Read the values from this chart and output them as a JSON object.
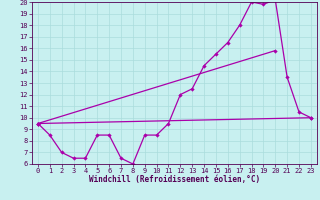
{
  "title": "",
  "xlabel": "Windchill (Refroidissement éolien,°C)",
  "background_color": "#c8f0f0",
  "line_color": "#aa00aa",
  "xlim": [
    -0.5,
    23.5
  ],
  "ylim": [
    6,
    20
  ],
  "xticks": [
    0,
    1,
    2,
    3,
    4,
    5,
    6,
    7,
    8,
    9,
    10,
    11,
    12,
    13,
    14,
    15,
    16,
    17,
    18,
    19,
    20,
    21,
    22,
    23
  ],
  "yticks": [
    6,
    7,
    8,
    9,
    10,
    11,
    12,
    13,
    14,
    15,
    16,
    17,
    18,
    19,
    20
  ],
  "line1_x": [
    0,
    1,
    2,
    3,
    4,
    5,
    6,
    7,
    8,
    9,
    10,
    11,
    12,
    13,
    14,
    15,
    16,
    17,
    18,
    19,
    20,
    21,
    22,
    23
  ],
  "line1_y": [
    9.5,
    8.5,
    7.0,
    6.5,
    6.5,
    8.5,
    8.5,
    6.5,
    6.0,
    8.5,
    8.5,
    9.5,
    12.0,
    12.5,
    14.5,
    15.5,
    16.5,
    18.0,
    20.0,
    19.8,
    20.2,
    13.5,
    10.5,
    10.0
  ],
  "line2_x": [
    0,
    23
  ],
  "line2_y": [
    9.5,
    10.0
  ],
  "line3_x": [
    0,
    20
  ],
  "line3_y": [
    9.5,
    15.8
  ],
  "grid_color": "#aadddd",
  "tick_color": "#550055",
  "tick_fontsize": 5.0,
  "xlabel_fontsize": 5.5,
  "lw": 0.9,
  "ms": 2.2
}
